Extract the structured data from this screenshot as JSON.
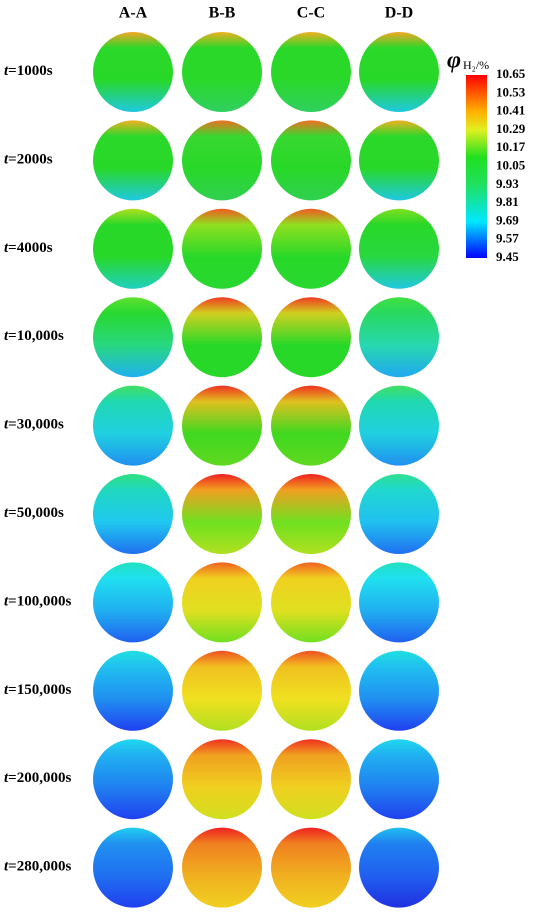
{
  "columns": [
    "A-A",
    "B-B",
    "C-C",
    "D-D"
  ],
  "rows": [
    {
      "var": "t",
      "label": "=1000s",
      "cells": [
        [
          "#f5a623",
          "#2bd82b",
          "#28d828",
          "#20c8e0"
        ],
        [
          "#f0b020",
          "#2ad82a",
          "#2ad82a",
          "#30d060"
        ],
        [
          "#f0b020",
          "#2ad82a",
          "#2ad82a",
          "#30d060"
        ],
        [
          "#f5a623",
          "#2bd82b",
          "#28d828",
          "#20c8e0"
        ]
      ]
    },
    {
      "var": "t",
      "label": "=2000s",
      "cells": [
        [
          "#f0b020",
          "#2bd82b",
          "#28d828",
          "#20c8e0"
        ],
        [
          "#f07020",
          "#38d830",
          "#28d828",
          "#30d050"
        ],
        [
          "#f07020",
          "#38d830",
          "#28d828",
          "#30d050"
        ],
        [
          "#f0b020",
          "#2bd82b",
          "#28d828",
          "#20c8e0"
        ]
      ]
    },
    {
      "var": "t",
      "label": "=4000s",
      "cells": [
        [
          "#b0e020",
          "#28d828",
          "#28d828",
          "#20d0c0"
        ],
        [
          "#f05a20",
          "#90e020",
          "#28d828",
          "#28d830"
        ],
        [
          "#f05a20",
          "#90e020",
          "#28d828",
          "#28d830"
        ],
        [
          "#80e020",
          "#28d828",
          "#28d840",
          "#20c8e0"
        ]
      ]
    },
    {
      "var": "t",
      "label": "=10,000s",
      "cells": [
        [
          "#60e030",
          "#28d830",
          "#28d880",
          "#20b0f0"
        ],
        [
          "#f03a20",
          "#d0d020",
          "#28d828",
          "#28d828"
        ],
        [
          "#f03a20",
          "#d0d020",
          "#28d828",
          "#28d828"
        ],
        [
          "#40e040",
          "#28d860",
          "#28d8b0",
          "#20a8f0"
        ]
      ]
    },
    {
      "var": "t",
      "label": "=30,000s",
      "cells": [
        [
          "#40e060",
          "#20d8b0",
          "#20d0e0",
          "#2090f0"
        ],
        [
          "#f03020",
          "#e0c020",
          "#40d820",
          "#60d820"
        ],
        [
          "#f03020",
          "#e0c020",
          "#40d820",
          "#60d820"
        ],
        [
          "#40e060",
          "#20d8b0",
          "#20d0e0",
          "#2090f0"
        ]
      ]
    },
    {
      "var": "t",
      "label": "=50,000s",
      "cells": [
        [
          "#30e080",
          "#20d8c0",
          "#20c8f0",
          "#2070f0"
        ],
        [
          "#f02020",
          "#f0a020",
          "#70e020",
          "#b0e020"
        ],
        [
          "#f02020",
          "#f0a020",
          "#70e020",
          "#b0e020"
        ],
        [
          "#30e090",
          "#20d8d0",
          "#20c0f0",
          "#2070f0"
        ]
      ]
    },
    {
      "var": "t",
      "label": "=100,000s",
      "cells": [
        [
          "#20e0c0",
          "#20e0f0",
          "#20b0f0",
          "#2060f0"
        ],
        [
          "#f06020",
          "#f0d020",
          "#e0e020",
          "#70e020"
        ],
        [
          "#f06020",
          "#f0d020",
          "#e0e020",
          "#70e020"
        ],
        [
          "#20e0c0",
          "#20e0f0",
          "#20b0f0",
          "#2060f0"
        ]
      ]
    },
    {
      "var": "t",
      "label": "=150,000s",
      "cells": [
        [
          "#20e0e0",
          "#20c0f0",
          "#2090f0",
          "#2040f0"
        ],
        [
          "#f05020",
          "#f0c020",
          "#f0e020",
          "#b0e020"
        ],
        [
          "#f05020",
          "#f0c020",
          "#f0e020",
          "#b0e020"
        ],
        [
          "#20e0e0",
          "#20c0f0",
          "#2090f0",
          "#2040f0"
        ]
      ]
    },
    {
      "var": "t",
      "label": "=200,000s",
      "cells": [
        [
          "#20d8f0",
          "#20b0f0",
          "#2080f0",
          "#2040f0"
        ],
        [
          "#f03020",
          "#f0a020",
          "#f0d020",
          "#d0e020"
        ],
        [
          "#f03020",
          "#f0a020",
          "#f0d020",
          "#d0e020"
        ],
        [
          "#20d8f0",
          "#20b0f0",
          "#2080f0",
          "#2040f0"
        ]
      ]
    },
    {
      "var": "t",
      "label": "=280,000s",
      "cells": [
        [
          "#20d0f0",
          "#2090f0",
          "#2070f0",
          "#2040f0"
        ],
        [
          "#f02020",
          "#f08020",
          "#f0b020",
          "#f0d020"
        ],
        [
          "#f02020",
          "#f08020",
          "#f0b020",
          "#f0d020"
        ],
        [
          "#20c0f0",
          "#2080f0",
          "#2060f0",
          "#2030e0"
        ]
      ]
    }
  ],
  "colorbar": {
    "symbol": "φ",
    "sub": "H₂/%",
    "ticks": [
      "10.65",
      "10.53",
      "10.41",
      "10.29",
      "10.17",
      "10.05",
      "9.93",
      "9.81",
      "9.69",
      "9.57",
      "9.45"
    ]
  }
}
